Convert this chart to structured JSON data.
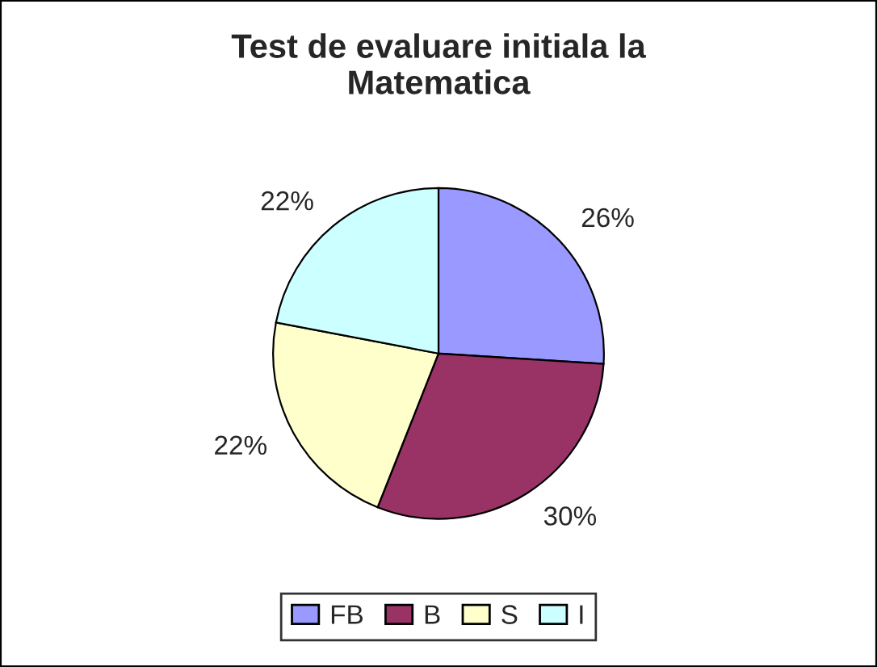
{
  "chart_data": {
    "type": "pie",
    "title": "Test de evaluare initiala la\nMatematica",
    "categories": [
      "FB",
      "B",
      "S",
      "I"
    ],
    "values": [
      26,
      30,
      22,
      22
    ],
    "value_labels": [
      "26%",
      "30%",
      "22%",
      "22%"
    ],
    "colors": [
      "#9999ff",
      "#993366",
      "#ffffcc",
      "#ccffff"
    ],
    "legend": "bottom"
  }
}
